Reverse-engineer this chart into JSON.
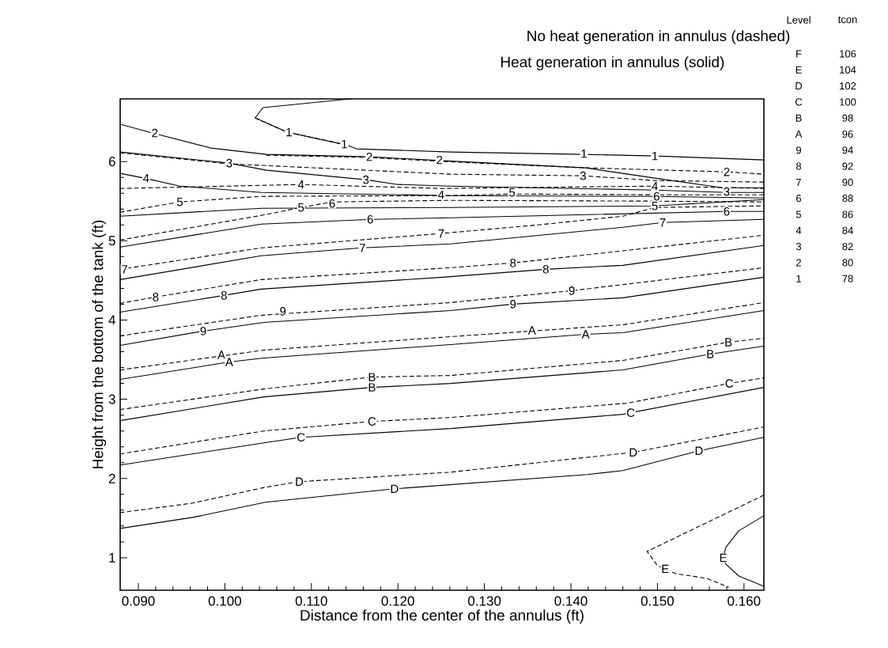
{
  "chart_data": {
    "type": "line",
    "title": "No heat generation in annulus (dashed)",
    "subtitle": "Heat generation in annulus (solid)",
    "xlabel": "Distance from the center of the annulus (ft)",
    "ylabel": "Height from the bottom of the tank (ft)",
    "marker": "none",
    "xlim": [
      0.0879,
      0.1623
    ],
    "ylim": [
      0.59,
      6.79
    ],
    "xticks": [
      {
        "value": 0.09,
        "label": "0.090"
      },
      {
        "value": 0.1,
        "label": "0.100"
      },
      {
        "value": 0.11,
        "label": "0.110"
      },
      {
        "value": 0.12,
        "label": "0.120"
      },
      {
        "value": 0.13,
        "label": "0.130"
      },
      {
        "value": 0.14,
        "label": "0.140"
      },
      {
        "value": 0.15,
        "label": "0.150"
      },
      {
        "value": 0.16,
        "label": "0.160"
      }
    ],
    "yticks": [
      1,
      2,
      3,
      4,
      5,
      6
    ],
    "series": [
      {
        "color": "#000000",
        "line_style": "solid",
        "x": [
          0.1145,
          0.1044,
          0.1035,
          0.1072,
          0.114,
          0.1152,
          0.1261,
          0.1414,
          0.1497,
          0.1623
        ],
        "values": [
          6.79,
          6.68,
          6.55,
          6.37,
          6.21,
          6.16,
          6.12,
          6.09,
          6.07,
          6.02
        ]
      },
      {
        "color": "#000000",
        "line_style": "dashed",
        "x": [
          0.1035,
          0.1072,
          0.114
        ],
        "values": [
          6.55,
          6.37,
          6.21
        ]
      },
      {
        "color": "#000000",
        "line_style": "solid",
        "x": [
          0.0879,
          0.0916,
          0.0984,
          0.1048,
          0.1167,
          0.1252,
          0.1417,
          0.1497,
          0.1575,
          0.1623
        ],
        "values": [
          6.47,
          6.36,
          6.17,
          6.09,
          6.06,
          6.01,
          5.92,
          5.79,
          5.67,
          5.67
        ]
      },
      {
        "color": "#000000",
        "line_style": "dashed",
        "x": [
          0.1048,
          0.1167,
          0.1252,
          0.1417,
          0.158,
          0.1623
        ],
        "values": [
          6.08,
          6.05,
          6.0,
          5.92,
          5.87,
          5.84
        ]
      },
      {
        "color": "#000000",
        "line_style": "solid",
        "x": [
          0.0879,
          0.1005,
          0.1048,
          0.1163,
          0.12,
          0.1261,
          0.1497,
          0.158,
          0.1623
        ],
        "values": [
          6.12,
          5.98,
          5.89,
          5.77,
          5.71,
          5.69,
          5.64,
          5.61,
          5.61
        ]
      },
      {
        "color": "#000000",
        "line_style": "dashed",
        "x": [
          0.0879,
          0.1005,
          0.1261,
          0.1414,
          0.1497,
          0.1623
        ],
        "values": [
          6.11,
          5.97,
          5.84,
          5.82,
          5.76,
          5.74
        ]
      },
      {
        "color": "#000000",
        "line_style": "solid",
        "x": [
          0.0879,
          0.0907,
          0.0948,
          0.1042,
          0.1261,
          0.1497,
          0.1623
        ],
        "values": [
          5.85,
          5.79,
          5.69,
          5.61,
          5.57,
          5.56,
          5.54
        ]
      },
      {
        "color": "#000000",
        "line_style": "dashed",
        "x": [
          0.0879,
          0.1088,
          0.1252,
          0.1497,
          0.1623
        ],
        "values": [
          5.66,
          5.71,
          5.66,
          5.69,
          5.66
        ]
      },
      {
        "color": "#000000",
        "line_style": "dashed",
        "x": [
          0.0879,
          0.0948,
          0.1042,
          0.1261,
          0.1333,
          0.1497,
          0.1623
        ],
        "values": [
          5.36,
          5.49,
          5.56,
          5.57,
          5.59,
          5.58,
          5.58
        ]
      },
      {
        "color": "#000000",
        "line_style": "solid",
        "x": [
          0.0879,
          0.1042,
          0.1261,
          0.1497,
          0.1623
        ],
        "values": [
          5.31,
          5.41,
          5.42,
          5.44,
          5.52
        ]
      },
      {
        "color": "#000000",
        "line_style": "dashed",
        "x": [
          0.0879,
          0.1042,
          0.1088,
          0.1124,
          0.1261,
          0.1497,
          0.1623
        ],
        "values": [
          5.01,
          5.32,
          5.42,
          5.49,
          5.51,
          5.5,
          5.49
        ]
      },
      {
        "color": "#000000",
        "line_style": "solid",
        "x": [
          0.0879,
          0.1042,
          0.117,
          0.1261,
          0.158,
          0.1623
        ],
        "values": [
          4.92,
          5.21,
          5.27,
          5.29,
          5.37,
          5.37
        ]
      },
      {
        "color": "#000000",
        "line_style": "dashed",
        "x": [
          0.0879,
          0.1042,
          0.1248,
          0.1362,
          0.146,
          0.1497,
          0.1623
        ],
        "values": [
          4.64,
          4.91,
          5.09,
          5.2,
          5.31,
          5.42,
          5.44
        ]
      },
      {
        "color": "#000000",
        "line_style": "solid",
        "x": [
          0.0879,
          0.1042,
          0.1158,
          0.1261,
          0.146,
          0.1506,
          0.1623
        ],
        "values": [
          4.51,
          4.81,
          4.91,
          4.96,
          5.17,
          5.23,
          5.27
        ]
      },
      {
        "color": "#000000",
        "line_style": "dashed",
        "x": [
          0.0879,
          0.092,
          0.1042,
          0.1261,
          0.1333,
          0.1623
        ],
        "values": [
          4.21,
          4.29,
          4.51,
          4.66,
          4.72,
          5.07
        ]
      },
      {
        "color": "#000000",
        "line_style": "solid",
        "x": [
          0.0879,
          0.0999,
          0.1042,
          0.1252,
          0.1371,
          0.146,
          0.1623
        ],
        "values": [
          4.1,
          4.31,
          4.39,
          4.54,
          4.64,
          4.69,
          4.94
        ]
      },
      {
        "color": "#000000",
        "line_style": "dashed",
        "x": [
          0.0879,
          0.1042,
          0.1261,
          0.1401,
          0.1623
        ],
        "values": [
          3.8,
          4.06,
          4.22,
          4.37,
          4.66
        ]
      },
      {
        "color": "#000000",
        "line_style": "solid",
        "x": [
          0.0879,
          0.0975,
          0.1045,
          0.1261,
          0.1333,
          0.146,
          0.1623
        ],
        "values": [
          3.68,
          3.86,
          3.97,
          4.12,
          4.2,
          4.28,
          4.54
        ]
      },
      {
        "color": "#000000",
        "line_style": "dashed",
        "x": [
          0.0879,
          0.1045,
          0.1261,
          0.146,
          0.1623
        ],
        "values": [
          3.37,
          3.62,
          3.79,
          3.94,
          4.22
        ]
      },
      {
        "color": "#000000",
        "line_style": "solid",
        "x": [
          0.0879,
          0.1005,
          0.1045,
          0.1261,
          0.1417,
          0.146,
          0.1623
        ],
        "values": [
          3.25,
          3.47,
          3.52,
          3.69,
          3.82,
          3.84,
          4.12
        ]
      },
      {
        "color": "#000000",
        "line_style": "dashed",
        "x": [
          0.0879,
          0.1045,
          0.117,
          0.1261,
          0.146,
          0.1582,
          0.1623
        ],
        "values": [
          2.87,
          3.13,
          3.28,
          3.3,
          3.49,
          3.72,
          3.77
        ]
      },
      {
        "color": "#000000",
        "line_style": "solid",
        "x": [
          0.0879,
          0.1045,
          0.117,
          0.1261,
          0.146,
          0.1561,
          0.1623
        ],
        "values": [
          2.73,
          3.03,
          3.15,
          3.2,
          3.37,
          3.57,
          3.67
        ]
      },
      {
        "color": "#000000",
        "line_style": "dashed",
        "x": [
          0.0879,
          0.1045,
          0.117,
          0.1261,
          0.1465,
          0.1583,
          0.1623
        ],
        "values": [
          2.31,
          2.6,
          2.72,
          2.77,
          2.95,
          3.2,
          3.27
        ]
      },
      {
        "color": "#000000",
        "line_style": "solid",
        "x": [
          0.0879,
          0.1045,
          0.1088,
          0.1261,
          0.146,
          0.1469,
          0.1623
        ],
        "values": [
          2.17,
          2.45,
          2.52,
          2.63,
          2.81,
          2.83,
          3.15
        ]
      },
      {
        "color": "#000000",
        "line_style": "dashed",
        "x": [
          0.0879,
          0.0963,
          0.1047,
          0.1086,
          0.1261,
          0.1472,
          0.1623
        ],
        "values": [
          1.57,
          1.69,
          1.89,
          1.96,
          2.08,
          2.33,
          2.65
        ]
      },
      {
        "color": "#000000",
        "line_style": "solid",
        "x": [
          0.0879,
          0.0963,
          0.1047,
          0.1196,
          0.1419,
          0.146,
          0.1548,
          0.1623
        ],
        "values": [
          1.37,
          1.51,
          1.7,
          1.87,
          2.05,
          2.1,
          2.35,
          2.52
        ]
      },
      {
        "color": "#000000",
        "line_style": "dashed",
        "x": [
          0.1623,
          0.1488,
          0.15,
          0.1509,
          0.1521,
          0.1557,
          0.1582
        ],
        "values": [
          1.79,
          1.08,
          0.9,
          0.86,
          0.8,
          0.74,
          0.63
        ]
      },
      {
        "color": "#000000",
        "line_style": "solid",
        "x": [
          0.1623,
          0.1594,
          0.1579,
          0.1576,
          0.1579,
          0.1594,
          0.1623
        ],
        "values": [
          1.53,
          1.34,
          1.13,
          1.0,
          0.92,
          0.77,
          0.64
        ]
      }
    ],
    "annotations": [
      "Level",
      "tcon",
      "F",
      "106",
      "E",
      "104",
      "D",
      "102",
      "C",
      "100",
      "B",
      "98",
      "A",
      "96",
      "9",
      "94",
      "8",
      "92",
      "7",
      "90",
      "6",
      "88",
      "5",
      "86",
      "4",
      "84",
      "3",
      "82",
      "2",
      "80",
      "1",
      "78",
      {
        "text": "2",
        "x": 0.0919,
        "y": 6.36
      },
      {
        "text": "1",
        "x": 0.1074,
        "y": 6.37
      },
      {
        "text": "1",
        "x": 0.1138,
        "y": 6.22
      },
      {
        "text": "2",
        "x": 0.1167,
        "y": 6.06
      },
      {
        "text": "2",
        "x": 0.1248,
        "y": 6.02
      },
      {
        "text": "1",
        "x": 0.1415,
        "y": 6.1
      },
      {
        "text": "1",
        "x": 0.1497,
        "y": 6.07
      },
      {
        "text": "2",
        "x": 0.158,
        "y": 5.87
      },
      {
        "text": "3",
        "x": 0.1005,
        "y": 5.98
      },
      {
        "text": "3",
        "x": 0.1163,
        "y": 5.77
      },
      {
        "text": "3",
        "x": 0.1414,
        "y": 5.82
      },
      {
        "text": "3",
        "x": 0.158,
        "y": 5.62
      },
      {
        "text": "4",
        "x": 0.0909,
        "y": 5.79
      },
      {
        "text": "4",
        "x": 0.1088,
        "y": 5.71
      },
      {
        "text": "4",
        "x": 0.125,
        "y": 5.58
      },
      {
        "text": "4",
        "x": 0.1497,
        "y": 5.69
      },
      {
        "text": "5",
        "x": 0.0948,
        "y": 5.49
      },
      {
        "text": "5",
        "x": 0.1088,
        "y": 5.42
      },
      {
        "text": "6",
        "x": 0.1124,
        "y": 5.47
      },
      {
        "text": "5",
        "x": 0.1332,
        "y": 5.61
      },
      {
        "text": "6",
        "x": 0.1499,
        "y": 5.56
      },
      {
        "text": "5",
        "x": 0.1497,
        "y": 5.44
      },
      {
        "text": "6",
        "x": 0.1168,
        "y": 5.27
      },
      {
        "text": "6",
        "x": 0.158,
        "y": 5.37
      },
      {
        "text": "7",
        "x": 0.0884,
        "y": 4.64
      },
      {
        "text": "7",
        "x": 0.1159,
        "y": 4.91
      },
      {
        "text": "7",
        "x": 0.125,
        "y": 5.09
      },
      {
        "text": "7",
        "x": 0.1506,
        "y": 5.23
      },
      {
        "text": "8",
        "x": 0.092,
        "y": 4.29
      },
      {
        "text": "8",
        "x": 0.0999,
        "y": 4.31
      },
      {
        "text": "8",
        "x": 0.1333,
        "y": 4.72
      },
      {
        "text": "8",
        "x": 0.1371,
        "y": 4.64
      },
      {
        "text": "9",
        "x": 0.0975,
        "y": 3.86
      },
      {
        "text": "9",
        "x": 0.1067,
        "y": 4.11
      },
      {
        "text": "9",
        "x": 0.1333,
        "y": 4.2
      },
      {
        "text": "9",
        "x": 0.1401,
        "y": 4.37
      },
      {
        "text": "A",
        "x": 0.0996,
        "y": 3.56
      },
      {
        "text": "A",
        "x": 0.1005,
        "y": 3.47
      },
      {
        "text": "A",
        "x": 0.1355,
        "y": 3.87
      },
      {
        "text": "A",
        "x": 0.1417,
        "y": 3.82
      },
      {
        "text": "B",
        "x": 0.117,
        "y": 3.28
      },
      {
        "text": "B",
        "x": 0.117,
        "y": 3.15
      },
      {
        "text": "B",
        "x": 0.1582,
        "y": 3.72
      },
      {
        "text": "B",
        "x": 0.1561,
        "y": 3.57
      },
      {
        "text": "C",
        "x": 0.117,
        "y": 2.72
      },
      {
        "text": "C",
        "x": 0.1088,
        "y": 2.52
      },
      {
        "text": "C",
        "x": 0.1469,
        "y": 2.83
      },
      {
        "text": "C",
        "x": 0.1583,
        "y": 3.2
      },
      {
        "text": "D",
        "x": 0.1086,
        "y": 1.96
      },
      {
        "text": "D",
        "x": 0.1196,
        "y": 1.87
      },
      {
        "text": "D",
        "x": 0.1472,
        "y": 2.33
      },
      {
        "text": "D",
        "x": 0.1548,
        "y": 2.35
      },
      {
        "text": "E",
        "x": 0.1509,
        "y": 0.86
      },
      {
        "text": "E",
        "x": 0.1576,
        "y": 1.0
      }
    ]
  }
}
